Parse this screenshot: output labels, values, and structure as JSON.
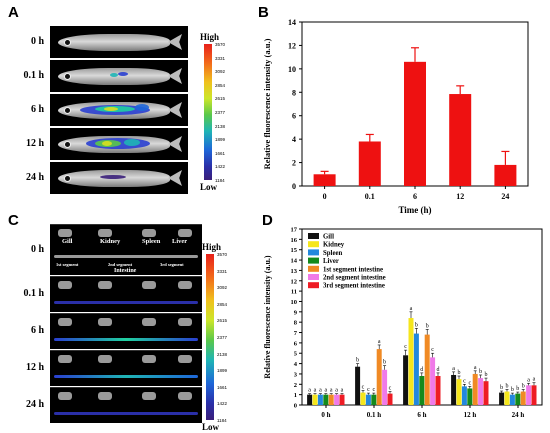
{
  "panels": {
    "A": {
      "letter": "A",
      "rows": [
        "0 h",
        "0.1 h",
        "6 h",
        "12 h",
        "24 h"
      ],
      "colorbar": {
        "high": "High",
        "low": "Low",
        "ticks": [
          "3570",
          "3331",
          "3092",
          "2854",
          "2615",
          "2377",
          "2138",
          "1899",
          "1661",
          "1422",
          "1184"
        ]
      }
    },
    "B": {
      "letter": "B"
    },
    "C": {
      "letter": "C",
      "rows": [
        "0 h",
        "0.1 h",
        "6 h",
        "12 h",
        "24 h"
      ],
      "organs": [
        "Gill",
        "Kidney",
        "Spleen",
        "Liver"
      ],
      "segments": [
        "1st segment",
        "2nd segment",
        "3rd segment"
      ],
      "intestine_label": "Intestine",
      "colorbar": {
        "high": "High",
        "low": "Low",
        "ticks": [
          "3570",
          "3331",
          "3092",
          "2854",
          "2615",
          "2377",
          "2138",
          "1899",
          "1661",
          "1422",
          "1184"
        ]
      }
    },
    "D": {
      "letter": "D"
    }
  },
  "chart_data": [
    {
      "panel": "B",
      "type": "bar",
      "categories": [
        "0",
        "0.1",
        "6",
        "12",
        "24"
      ],
      "values": [
        1.0,
        3.8,
        10.6,
        7.85,
        1.8
      ],
      "errors": [
        0.25,
        0.6,
        1.2,
        0.7,
        1.15
      ],
      "xlabel": "Time (h)",
      "ylabel": "Relative fluorescence intensity (a.u.)",
      "ylim": [
        0,
        14
      ],
      "yticks": [
        0,
        2,
        4,
        6,
        8,
        10,
        12,
        14
      ],
      "color": "#ee1111"
    },
    {
      "panel": "D",
      "type": "bar",
      "categories": [
        "0 h",
        "0.1 h",
        "6 h",
        "12 h",
        "24 h"
      ],
      "xlabel": "",
      "ylabel": "Relative fluorescence intensity (a.u.)",
      "ylim": [
        0,
        17
      ],
      "yticks": [
        0,
        1,
        2,
        3,
        4,
        5,
        6,
        7,
        8,
        9,
        10,
        11,
        12,
        13,
        14,
        15,
        16,
        17
      ],
      "legend_position": "top-left",
      "series": [
        {
          "name": "Gill",
          "color": "#111111",
          "values": [
            1.0,
            3.7,
            4.8,
            2.9,
            1.2
          ],
          "errors": [
            0.1,
            0.3,
            0.5,
            0.3,
            0.15
          ],
          "letters": [
            "a",
            "b",
            "c",
            "a",
            "b"
          ]
        },
        {
          "name": "Kidney",
          "color": "#f5e61c",
          "values": [
            1.0,
            1.2,
            8.4,
            2.5,
            1.3
          ],
          "errors": [
            0.1,
            0.2,
            0.6,
            0.3,
            0.2
          ],
          "letters": [
            "a",
            "c",
            "a",
            "b",
            "b"
          ]
        },
        {
          "name": "Spleen",
          "color": "#2288dd",
          "values": [
            1.0,
            1.0,
            6.9,
            1.8,
            1.0
          ],
          "errors": [
            0.1,
            0.15,
            0.5,
            0.2,
            0.15
          ],
          "letters": [
            "a",
            "c",
            "b",
            "c",
            "b"
          ]
        },
        {
          "name": "Liver",
          "color": "#138a1c",
          "values": [
            1.0,
            1.0,
            2.8,
            1.6,
            1.1
          ],
          "errors": [
            0.1,
            0.15,
            0.3,
            0.2,
            0.15
          ],
          "letters": [
            "a",
            "c",
            "d",
            "c",
            "b"
          ]
        },
        {
          "name": "1st segment intestine",
          "color": "#f08a24",
          "values": [
            1.0,
            5.4,
            6.8,
            3.0,
            1.3
          ],
          "errors": [
            0.1,
            0.4,
            0.5,
            0.3,
            0.2
          ],
          "letters": [
            "a",
            "a",
            "b",
            "a",
            "b"
          ]
        },
        {
          "name": "2nd segment intestine",
          "color": "#f07ae8",
          "values": [
            1.0,
            3.4,
            4.6,
            2.6,
            1.9
          ],
          "errors": [
            0.1,
            0.4,
            0.4,
            0.3,
            0.2
          ],
          "letters": [
            "a",
            "b",
            "c",
            "b",
            "a"
          ]
        },
        {
          "name": "3rd segment intestine",
          "color": "#ee1c24",
          "values": [
            1.0,
            1.1,
            2.8,
            2.3,
            1.9
          ],
          "errors": [
            0.1,
            0.2,
            0.3,
            0.3,
            0.25
          ],
          "letters": [
            "a",
            "c",
            "d",
            "b",
            "a"
          ]
        }
      ]
    }
  ]
}
